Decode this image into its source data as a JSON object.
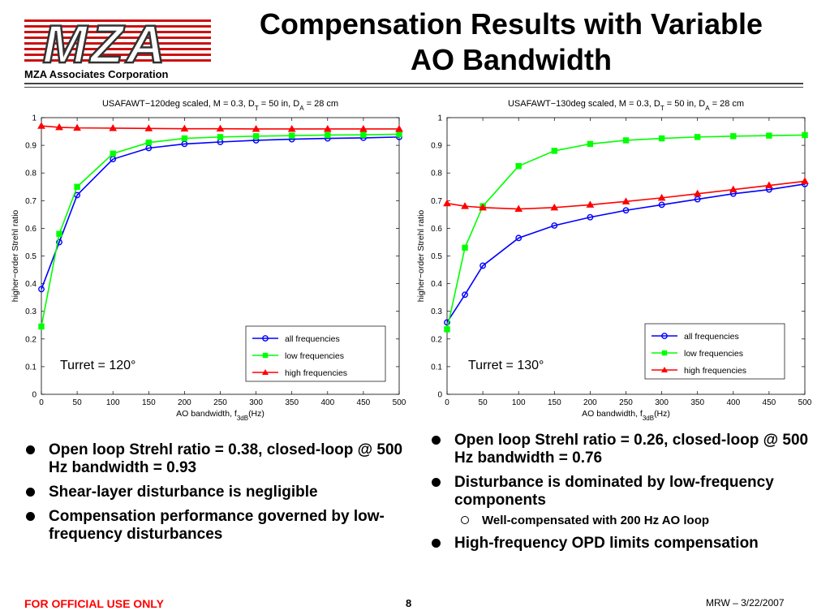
{
  "header": {
    "title": "Compensation Results with Variable AO Bandwidth",
    "company": "MZA Associates Corporation",
    "logo_text": "MZA"
  },
  "colors": {
    "blue": "#0000ff",
    "green": "#00ff00",
    "red": "#ff0000",
    "footer": "#ff0000",
    "logo": "#cc1111"
  },
  "chart_data": [
    {
      "type": "line",
      "title": "USAFAWT−120deg scaled, M = 0.3, D_T = 50 in, D_A = 28 cm",
      "xlabel": "AO bandwidth, f_3dB(Hz)",
      "ylabel": "higher−order Strehl ratio",
      "xlim": [
        0,
        500
      ],
      "ylim": [
        0,
        1
      ],
      "xticks": [
        0,
        50,
        100,
        150,
        200,
        250,
        300,
        350,
        400,
        450,
        500
      ],
      "yticks": [
        0,
        0.1,
        0.2,
        0.3,
        0.4,
        0.5,
        0.6,
        0.7,
        0.8,
        0.9,
        1
      ],
      "grid": false,
      "legend_position": "bottom-right",
      "annotation": "Turret = 120°",
      "x": [
        0,
        25,
        50,
        100,
        150,
        200,
        250,
        300,
        350,
        400,
        450,
        500
      ],
      "series": [
        {
          "name": "all frequencies",
          "color": "#0000ff",
          "marker": "circle",
          "values": [
            0.38,
            0.55,
            0.72,
            0.85,
            0.89,
            0.905,
            0.912,
            0.918,
            0.922,
            0.925,
            0.927,
            0.93
          ]
        },
        {
          "name": "low frequencies",
          "color": "#00ff00",
          "marker": "square",
          "values": [
            0.245,
            0.58,
            0.75,
            0.87,
            0.91,
            0.925,
            0.93,
            0.933,
            0.935,
            0.937,
            0.938,
            0.94
          ]
        },
        {
          "name": "high frequencies",
          "color": "#ff0000",
          "marker": "triangle",
          "values": [
            0.97,
            0.965,
            0.963,
            0.962,
            0.961,
            0.96,
            0.96,
            0.959,
            0.959,
            0.959,
            0.959,
            0.959
          ]
        }
      ]
    },
    {
      "type": "line",
      "title": "USAFAWT−130deg scaled, M = 0.3, D_T = 50 in, D_A = 28 cm",
      "xlabel": "AO bandwidth, f_3dB(Hz)",
      "ylabel": "higher−order Strehl ratio",
      "xlim": [
        0,
        500
      ],
      "ylim": [
        0,
        1
      ],
      "xticks": [
        0,
        50,
        100,
        150,
        200,
        250,
        300,
        350,
        400,
        450,
        500
      ],
      "yticks": [
        0,
        0.1,
        0.2,
        0.3,
        0.4,
        0.5,
        0.6,
        0.7,
        0.8,
        0.9,
        1
      ],
      "grid": false,
      "legend_position": "bottom-right",
      "annotation": "Turret = 130°",
      "x": [
        0,
        25,
        50,
        100,
        150,
        200,
        250,
        300,
        350,
        400,
        450,
        500
      ],
      "series": [
        {
          "name": "all frequencies",
          "color": "#0000ff",
          "marker": "circle",
          "values": [
            0.26,
            0.36,
            0.465,
            0.565,
            0.61,
            0.64,
            0.665,
            0.685,
            0.705,
            0.725,
            0.74,
            0.76
          ]
        },
        {
          "name": "low frequencies",
          "color": "#00ff00",
          "marker": "square",
          "values": [
            0.235,
            0.53,
            0.68,
            0.825,
            0.88,
            0.905,
            0.918,
            0.925,
            0.93,
            0.933,
            0.935,
            0.937
          ]
        },
        {
          "name": "high frequencies",
          "color": "#ff0000",
          "marker": "triangle",
          "values": [
            0.69,
            0.68,
            0.675,
            0.67,
            0.675,
            0.685,
            0.697,
            0.71,
            0.725,
            0.74,
            0.755,
            0.77
          ]
        }
      ]
    }
  ],
  "left_bullets": [
    "Open loop Strehl ratio = 0.38, closed-loop @ 500 Hz bandwidth = 0.93",
    "Shear-layer disturbance is negligible",
    "Compensation performance governed by low-frequency disturbances"
  ],
  "right_bullets": {
    "b1": "Open loop Strehl ratio = 0.26, closed-loop @ 500 Hz bandwidth = 0.76",
    "b2": "Disturbance is dominated by low-frequency components",
    "sub": "Well-compensated with 200 Hz AO loop",
    "b3": "High-frequency OPD limits compensation"
  },
  "footer": {
    "classification": "FOR OFFICIAL USE ONLY",
    "page": "8",
    "author_date": "MRW – 3/22/2007"
  }
}
